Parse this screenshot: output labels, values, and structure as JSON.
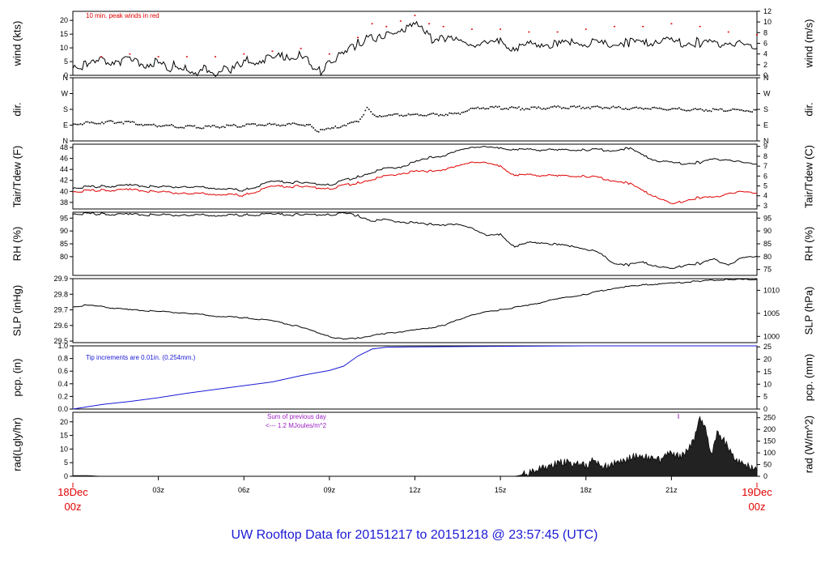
{
  "title": "UW Rooftop Data for 20151217  to  20151218 @ 23:57:45  (UTC)",
  "x_axis": {
    "start_label": [
      "18Dec",
      "00z"
    ],
    "end_label": [
      "19Dec",
      "00z"
    ],
    "ticks": [
      "03z",
      "06z",
      "09z",
      "12z",
      "15z",
      "18z",
      "21z"
    ],
    "tick_hours": [
      3,
      6,
      9,
      12,
      15,
      18,
      21
    ],
    "range_hours": [
      0,
      24
    ]
  },
  "colors": {
    "axis": "#000000",
    "peak_wind": "#e00000",
    "dewpoint": "#e00000",
    "precip": "#1a1ad6",
    "note_purple": "#9a1fc2",
    "date_red": "#e00000",
    "title_blue": "#1a1ad6"
  },
  "panels": {
    "wind": {
      "left_label": "wind (kts)",
      "right_label": "wind (m/s)",
      "left_ticks": [
        "0",
        "5",
        "10",
        "15",
        "20"
      ],
      "left_tick_values": [
        0,
        5,
        10,
        15,
        20
      ],
      "right_ticks": [
        "0",
        "2",
        "4",
        "6",
        "8",
        "10",
        "12"
      ],
      "right_tick_values": [
        0,
        2,
        4,
        6,
        8,
        10,
        12
      ],
      "ylim": [
        0,
        23.3
      ],
      "note": "10 min. peak winds in red"
    },
    "dir": {
      "left_label": "dir.",
      "right_label": "dir.",
      "ticks": [
        "N",
        "E",
        "S",
        "W",
        "N"
      ],
      "tick_values": [
        0,
        90,
        180,
        270,
        360
      ],
      "ylim": [
        0,
        360
      ]
    },
    "temp": {
      "left_label": "Tair/Tdew (F)",
      "right_label": "Tair/Tdew (C)",
      "left_ticks": [
        "38",
        "40",
        "42",
        "44",
        "46",
        "48"
      ],
      "left_tick_values": [
        38,
        40,
        42,
        44,
        46,
        48
      ],
      "right_ticks": [
        "3",
        "4",
        "5",
        "6",
        "7",
        "8",
        "9"
      ],
      "right_tick_values": [
        3,
        4,
        5,
        6,
        7,
        8,
        9
      ],
      "ylim": [
        36.8,
        48.6
      ]
    },
    "rh": {
      "left_label": "RH (%)",
      "right_label": "RH (%)",
      "left_ticks": [
        "80",
        "85",
        "90",
        "95"
      ],
      "left_tick_values": [
        80,
        85,
        90,
        95
      ],
      "right_ticks": [
        "75",
        "80",
        "85",
        "90",
        "95"
      ],
      "right_tick_values": [
        75,
        80,
        85,
        90,
        95
      ],
      "ylim": [
        72.7,
        97.3
      ]
    },
    "slp": {
      "left_label": "SLP (inHg)",
      "right_label": "SLP (hPa)",
      "left_ticks": [
        "29.5",
        "29.6",
        "29.7",
        "29.8",
        "29.9"
      ],
      "left_tick_values": [
        29.5,
        29.6,
        29.7,
        29.8,
        29.9
      ],
      "right_ticks": [
        "1000",
        "1005",
        "1010"
      ],
      "right_tick_values": [
        1000,
        1005,
        1010
      ],
      "ylim": [
        29.49,
        29.9
      ]
    },
    "pcp": {
      "left_label": "pcp. (in)",
      "right_label": "pcp. (mm)",
      "left_ticks": [
        "0.0",
        "0.2",
        "0.4",
        "0.6",
        "0.8",
        "1.0"
      ],
      "left_tick_values": [
        0,
        0.2,
        0.4,
        0.6,
        0.8,
        1.0
      ],
      "right_ticks": [
        "0",
        "5",
        "10",
        "15",
        "20",
        "25"
      ],
      "right_tick_values": [
        0,
        5,
        10,
        15,
        20,
        25
      ],
      "ylim": [
        0,
        1.0
      ],
      "note": "Tip increments are 0.01in. (0.254mm.)"
    },
    "rad": {
      "left_label": "rad(Lgly/hr)",
      "right_label": "rad (W/m^2)",
      "left_ticks": [
        "0",
        "5",
        "10",
        "15",
        "20"
      ],
      "left_tick_values": [
        0,
        5,
        10,
        15,
        20
      ],
      "right_ticks": [
        "0",
        "50",
        "100",
        "150",
        "200",
        "250"
      ],
      "right_tick_values": [
        0,
        50,
        100,
        150,
        200,
        250
      ],
      "ylim": [
        0,
        23.5
      ],
      "note_line1": "Sum of previous day",
      "note_line2": "<--- 1.2 MJoules/m^2"
    }
  },
  "chart_data": {
    "type": "line",
    "x_unit": "hours since 18Dec 00z",
    "series": [
      {
        "name": "wind",
        "units": "kts",
        "x": [
          0,
          0.5,
          1,
          1.5,
          2,
          2.5,
          3,
          3.3,
          3.6,
          4,
          4.3,
          4.6,
          5,
          5.3,
          5.6,
          6,
          6.5,
          7,
          7.5,
          8,
          8.3,
          8.7,
          9,
          9.5,
          10,
          10.3,
          10.7,
          11,
          11.3,
          11.6,
          12,
          12.3,
          12.6,
          13,
          13.5,
          14,
          14.5,
          15,
          15.5,
          16,
          16.5,
          17,
          17.5,
          18,
          18.5,
          19,
          19.5,
          20,
          20.5,
          21,
          21.5,
          22,
          22.5,
          23,
          23.5,
          24
        ],
        "y": [
          4,
          3.5,
          5,
          5.5,
          5,
          4,
          5,
          2,
          4,
          3,
          1,
          3,
          1,
          3,
          2,
          5,
          5.5,
          6,
          7,
          7.5,
          5,
          1,
          6,
          7,
          12,
          13,
          14,
          15,
          15,
          16,
          18,
          17,
          13,
          14,
          12,
          12,
          11,
          12,
          10,
          11,
          12,
          11,
          12,
          12,
          11,
          12,
          12,
          11,
          13,
          12,
          12,
          12,
          11,
          12,
          11,
          10
        ]
      },
      {
        "name": "10 min. peak winds",
        "units": "kts",
        "x": [
          1,
          2,
          3,
          4,
          5,
          6,
          7,
          8,
          9,
          10,
          10.5,
          11,
          11.5,
          12,
          12.5,
          13,
          14,
          15,
          16,
          17,
          18,
          19,
          20,
          21,
          22,
          23,
          24
        ],
        "y": [
          7,
          8,
          7,
          7,
          7,
          8,
          9,
          10,
          8,
          14,
          19,
          18,
          20,
          22,
          19,
          18,
          17,
          17,
          16,
          16,
          17,
          18,
          18,
          19,
          18,
          16,
          15
        ]
      },
      {
        "name": "dir",
        "units": "deg",
        "x": [
          0,
          0.5,
          1,
          1.5,
          2,
          2.5,
          3,
          3.5,
          4,
          4.5,
          5,
          5.5,
          6,
          6.5,
          7,
          7.5,
          8,
          8.3,
          8.6,
          9,
          9.5,
          10,
          10.3,
          10.5,
          10.8,
          11,
          11.5,
          12,
          12.5,
          13,
          13.5,
          14,
          14.5,
          15,
          15.5,
          16,
          16.5,
          17,
          17.5,
          18,
          18.5,
          19,
          19.5,
          20,
          20.5,
          21,
          21.5,
          22,
          22.5,
          23,
          23.5,
          24
        ],
        "y": [
          100,
          105,
          110,
          112,
          108,
          95,
          92,
          88,
          85,
          82,
          85,
          88,
          92,
          95,
          96,
          97,
          100,
          90,
          60,
          70,
          95,
          115,
          190,
          150,
          148,
          150,
          150,
          152,
          155,
          155,
          160,
          185,
          195,
          192,
          190,
          188,
          192,
          195,
          195,
          195,
          195,
          192,
          190,
          190,
          188,
          185,
          183,
          182,
          180,
          180,
          178,
          175
        ]
      },
      {
        "name": "Tair",
        "units": "F",
        "x": [
          0,
          1,
          2,
          3,
          4,
          5,
          6,
          7,
          8,
          9,
          10,
          10.5,
          11,
          11.5,
          12,
          12.5,
          13,
          13.5,
          14,
          14.5,
          15,
          15.5,
          16,
          17,
          18,
          19,
          19.5,
          20,
          20.5,
          21,
          21.5,
          22,
          22.5,
          23,
          23.5,
          24
        ],
        "y": [
          40.7,
          40.9,
          41.1,
          40.8,
          40.9,
          40.6,
          40.2,
          41.8,
          41.6,
          41.2,
          42.7,
          43.5,
          44.2,
          44.5,
          45.3,
          46.2,
          46.5,
          47.3,
          48.2,
          48,
          47.8,
          47.7,
          47.6,
          47.5,
          47.6,
          47.5,
          47.9,
          46.5,
          45.6,
          45.2,
          45.1,
          45.3,
          45.8,
          45.8,
          45.2,
          45
        ]
      },
      {
        "name": "Tdew",
        "units": "F",
        "x": [
          0,
          1,
          2,
          3,
          4,
          5,
          6,
          7,
          8,
          9,
          10,
          10.5,
          11,
          11.5,
          12,
          12.5,
          13,
          13.5,
          14,
          14.5,
          15,
          15.5,
          16,
          17,
          18,
          19,
          19.5,
          20,
          20.5,
          21,
          21.5,
          22,
          22.5,
          23,
          23.5,
          24
        ],
        "y": [
          40,
          40.2,
          40.3,
          39.9,
          39.7,
          39.5,
          39.3,
          40.9,
          40.9,
          40.5,
          41.6,
          42.2,
          42.8,
          43.3,
          43.6,
          43.7,
          44.0,
          44.5,
          45.5,
          45.1,
          44.5,
          43,
          43.0,
          42.8,
          42.8,
          42,
          41.5,
          40,
          39,
          37.6,
          38.4,
          38.9,
          38.8,
          39.7,
          39.9,
          39.7
        ]
      },
      {
        "name": "RH",
        "units": "%",
        "x": [
          0,
          1,
          2,
          3,
          4,
          5,
          6,
          7,
          8,
          9,
          9.5,
          10,
          10.5,
          11,
          11.5,
          12,
          12.5,
          13,
          13.5,
          14,
          14.5,
          15,
          15.5,
          16,
          16.5,
          17,
          17.5,
          18,
          18.5,
          19,
          19.5,
          20,
          20.5,
          21,
          21.5,
          22,
          22.5,
          23,
          23.5,
          24
        ],
        "y": [
          96.8,
          96.6,
          96.4,
          96.2,
          96.3,
          96.1,
          96.2,
          96.5,
          96.3,
          96.4,
          96.8,
          96,
          94,
          94.3,
          93.7,
          93,
          92.7,
          92.5,
          92.3,
          91.5,
          88,
          88.5,
          84,
          85.4,
          85.6,
          84.6,
          84,
          83.2,
          81,
          77.5,
          76.8,
          77.6,
          76.4,
          75,
          77,
          77.4,
          78.8,
          76.9,
          79.5,
          80.2
        ]
      },
      {
        "name": "SLP",
        "units": "inHg",
        "x": [
          0,
          0.5,
          1,
          2,
          3,
          4,
          5,
          6,
          7,
          8,
          9,
          9.5,
          10,
          11,
          12,
          13,
          14,
          15,
          16,
          17,
          18,
          19,
          20,
          21,
          22,
          23,
          24
        ],
        "y": [
          29.72,
          29.73,
          29.72,
          29.7,
          29.69,
          29.68,
          29.66,
          29.65,
          29.63,
          29.59,
          29.53,
          29.51,
          29.52,
          29.55,
          29.57,
          29.6,
          29.67,
          29.7,
          29.73,
          29.77,
          29.8,
          29.84,
          29.86,
          29.87,
          29.885,
          29.895,
          29.895
        ]
      },
      {
        "name": "pcp",
        "units": "in",
        "x": [
          0,
          1,
          2,
          3,
          4,
          5,
          6,
          7,
          8,
          8.5,
          9,
          9.5,
          10,
          10.5,
          11,
          12,
          14,
          16,
          18,
          20,
          22,
          24
        ],
        "y": [
          0,
          0.07,
          0.12,
          0.18,
          0.25,
          0.31,
          0.37,
          0.43,
          0.53,
          0.57,
          0.61,
          0.68,
          0.84,
          0.95,
          0.98,
          0.985,
          0.99,
          0.995,
          1.0,
          1.0,
          1.0,
          1.0
        ]
      },
      {
        "name": "rad",
        "units": "Lgly/hr",
        "x": [
          0,
          0.5,
          1,
          15.5,
          16,
          16.5,
          17,
          17.5,
          18,
          18.3,
          18.6,
          19,
          19.4,
          19.8,
          20.2,
          20.6,
          21,
          21.3,
          21.6,
          21.8,
          22,
          22.2,
          22.4,
          22.6,
          22.8,
          23.2,
          23.6,
          24
        ],
        "y": [
          0.3,
          0.3,
          0,
          0,
          1,
          3,
          5,
          5,
          4,
          6,
          3,
          5,
          6,
          8,
          7,
          6,
          9,
          7,
          10,
          14,
          22,
          18,
          8,
          16,
          14,
          7,
          4,
          2
        ]
      }
    ]
  }
}
